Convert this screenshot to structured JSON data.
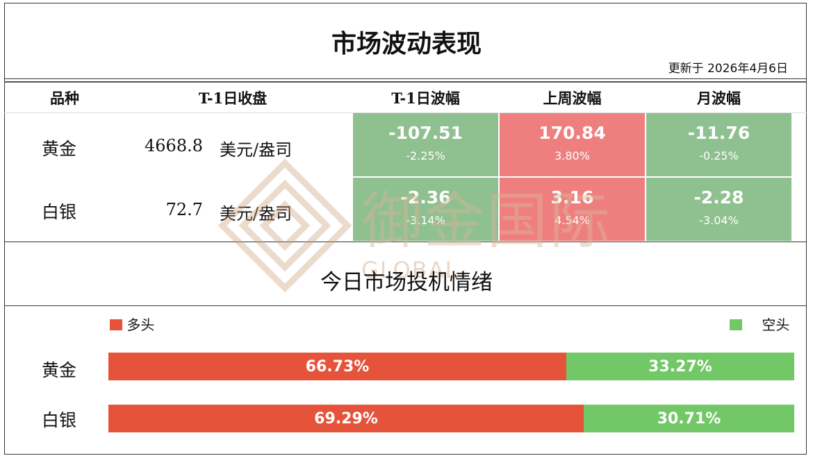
{
  "title": "市场波动表现",
  "updated": "更新于 2026年4月6日",
  "table": {
    "headers": [
      "品种",
      "T-1日收盘",
      "T-1日波幅",
      "上周波幅",
      "月波幅"
    ],
    "rows": [
      {
        "name": "黄金",
        "close_value": "4668.8",
        "close_unit": "美元/盎司",
        "cells": [
          {
            "value": "-107.51",
            "pct": "-2.25%",
            "color": "#8fc08f"
          },
          {
            "value": "170.84",
            "pct": "3.80%",
            "color": "#ef7f7f"
          },
          {
            "value": "-11.76",
            "pct": "-0.25%",
            "color": "#8fc08f"
          }
        ]
      },
      {
        "name": "白银",
        "close_value": "72.7",
        "close_unit": "美元/盎司",
        "cells": [
          {
            "value": "-2.36",
            "pct": "-3.14%",
            "color": "#8fc08f"
          },
          {
            "value": "3.16",
            "pct": "4.54%",
            "color": "#ef7f7f"
          },
          {
            "value": "-2.28",
            "pct": "-3.04%",
            "color": "#8fc08f"
          }
        ]
      }
    ]
  },
  "sentiment": {
    "title": "今日市场投机情绪",
    "legend_long": "多头",
    "legend_short": "空头",
    "colors": {
      "long": "#e5533a",
      "short": "#72c766"
    },
    "rows": [
      {
        "name": "黄金",
        "long_pct": 66.73,
        "short_pct": 33.27,
        "long_label": "66.73%",
        "short_label": "33.27%"
      },
      {
        "name": "白银",
        "long_pct": 69.29,
        "short_pct": 30.71,
        "long_label": "69.29%",
        "short_label": "30.71%"
      }
    ]
  },
  "watermark": {
    "cn": "御金国际",
    "en": "GLOBAL"
  }
}
